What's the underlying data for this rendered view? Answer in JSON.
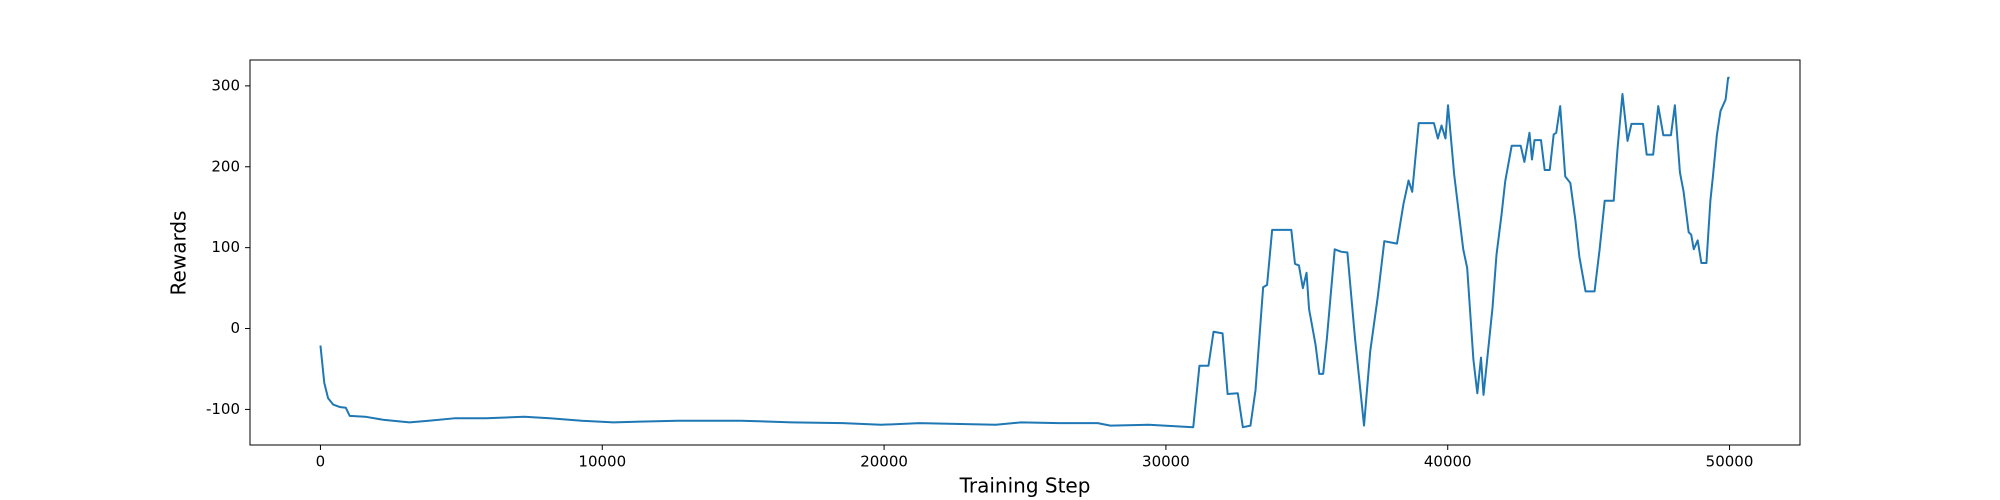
{
  "chart_data": {
    "type": "line",
    "x_label": "Training Step",
    "y_label": "Rewards",
    "x": [
      0,
      135,
      270,
      450,
      680,
      900,
      1040,
      1580,
      2260,
      3160,
      3840,
      4750,
      5880,
      7230,
      8140,
      9270,
      10400,
      12660,
      14920,
      16730,
      18540,
      19890,
      21250,
      23960,
      24860,
      26220,
      27580,
      28030,
      29390,
      30970,
      31190,
      31510,
      31690,
      32010,
      32190,
      32550,
      32730,
      33000,
      33180,
      33450,
      33590,
      33770,
      34450,
      34580,
      34720,
      34860,
      34990,
      35080,
      35310,
      35440,
      35580,
      35710,
      35990,
      36210,
      36440,
      36710,
      37030,
      37250,
      37520,
      37750,
      38200,
      38430,
      38610,
      38740,
      38970,
      39510,
      39650,
      39780,
      39920,
      40010,
      40230,
      40550,
      40690,
      40910,
      41050,
      41180,
      41270,
      41590,
      41730,
      41910,
      42040,
      42270,
      42590,
      42720,
      42900,
      42990,
      43080,
      43310,
      43440,
      43620,
      43760,
      43850,
      43990,
      44170,
      44350,
      44530,
      44670,
      44890,
      45210,
      45390,
      45570,
      45890,
      46020,
      46200,
      46380,
      46520,
      46930,
      47060,
      47290,
      47470,
      47650,
      47920,
      48060,
      48240,
      48370,
      48550,
      48640,
      48730,
      48870,
      49000,
      49180,
      49320,
      49410,
      49550,
      49680,
      49860,
      49950,
      50000
    ],
    "series": [
      {
        "color": "#1f77b4",
        "values": [
          -21,
          -67,
          -86,
          -94,
          -97,
          -98,
          -108,
          -109,
          -113,
          -116,
          -114,
          -111,
          -111,
          -109,
          -111,
          -114,
          -116,
          -114,
          -114,
          -116,
          -117,
          -119,
          -117,
          -119,
          -116,
          -117,
          -117,
          -120,
          -119,
          -122,
          -46,
          -46,
          -4,
          -6,
          -81,
          -80,
          -122,
          -120,
          -76,
          51,
          54,
          122,
          122,
          80,
          78,
          50,
          69,
          24,
          -20,
          -56,
          -56,
          -13,
          98,
          95,
          94,
          -12,
          -120,
          -28,
          40,
          108,
          105,
          154,
          183,
          169,
          254,
          254,
          235,
          251,
          235,
          276,
          190,
          98,
          75,
          -38,
          -80,
          -36,
          -82,
          26,
          91,
          141,
          182,
          226,
          226,
          206,
          242,
          209,
          233,
          233,
          196,
          196,
          240,
          242,
          275,
          188,
          180,
          134,
          89,
          46,
          46,
          98,
          158,
          158,
          220,
          290,
          232,
          253,
          253,
          215,
          215,
          275,
          239,
          239,
          276,
          193,
          169,
          119,
          116,
          98,
          109,
          81,
          81,
          158,
          188,
          239,
          269,
          283,
          310,
          310
        ]
      }
    ],
    "xlim": [
      -2500,
      52500
    ],
    "ylim": [
      -144,
      332
    ],
    "xticks": [
      0,
      10000,
      20000,
      30000,
      40000,
      50000
    ],
    "yticks": [
      -100,
      0,
      100,
      200,
      300
    ],
    "grid": false
  }
}
